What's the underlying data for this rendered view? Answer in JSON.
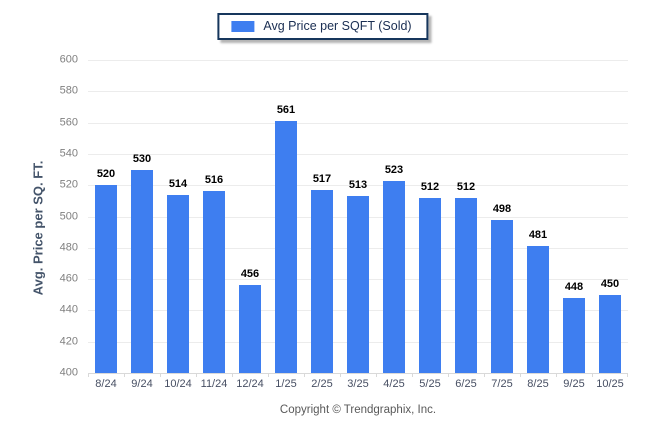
{
  "legend": {
    "label": "Avg Price per SQFT (Sold)"
  },
  "footer": {
    "text": "Copyright © Trendgraphix, Inc."
  },
  "colors": {
    "bar": "#3E7EF0",
    "legend_border": "#16365C",
    "legend_text": "#1A2E52",
    "grid_line": "#ECECEC",
    "axis_line": "#D9D9D9",
    "tick_label": "#7F7F7F",
    "x_label": "#474F63",
    "value_label": "#000000",
    "y_title": "#44546A",
    "footer_text": "#595959"
  },
  "chart_data": {
    "type": "bar",
    "title": "",
    "series_name": "Avg Price per SQFT (Sold)",
    "categories": [
      "8/24",
      "9/24",
      "10/24",
      "11/24",
      "12/24",
      "1/25",
      "2/25",
      "3/25",
      "4/25",
      "5/25",
      "6/25",
      "7/25",
      "8/25",
      "9/25",
      "10/25"
    ],
    "values": [
      520,
      530,
      514,
      516,
      456,
      561,
      517,
      513,
      523,
      512,
      512,
      498,
      481,
      448,
      450
    ],
    "xlabel": "",
    "ylabel": "Avg. Price per SQ. FT.",
    "ylim": [
      400,
      600
    ],
    "ytick_step": 20,
    "grid": true,
    "value_labels": true,
    "legend_position": "top-center"
  }
}
